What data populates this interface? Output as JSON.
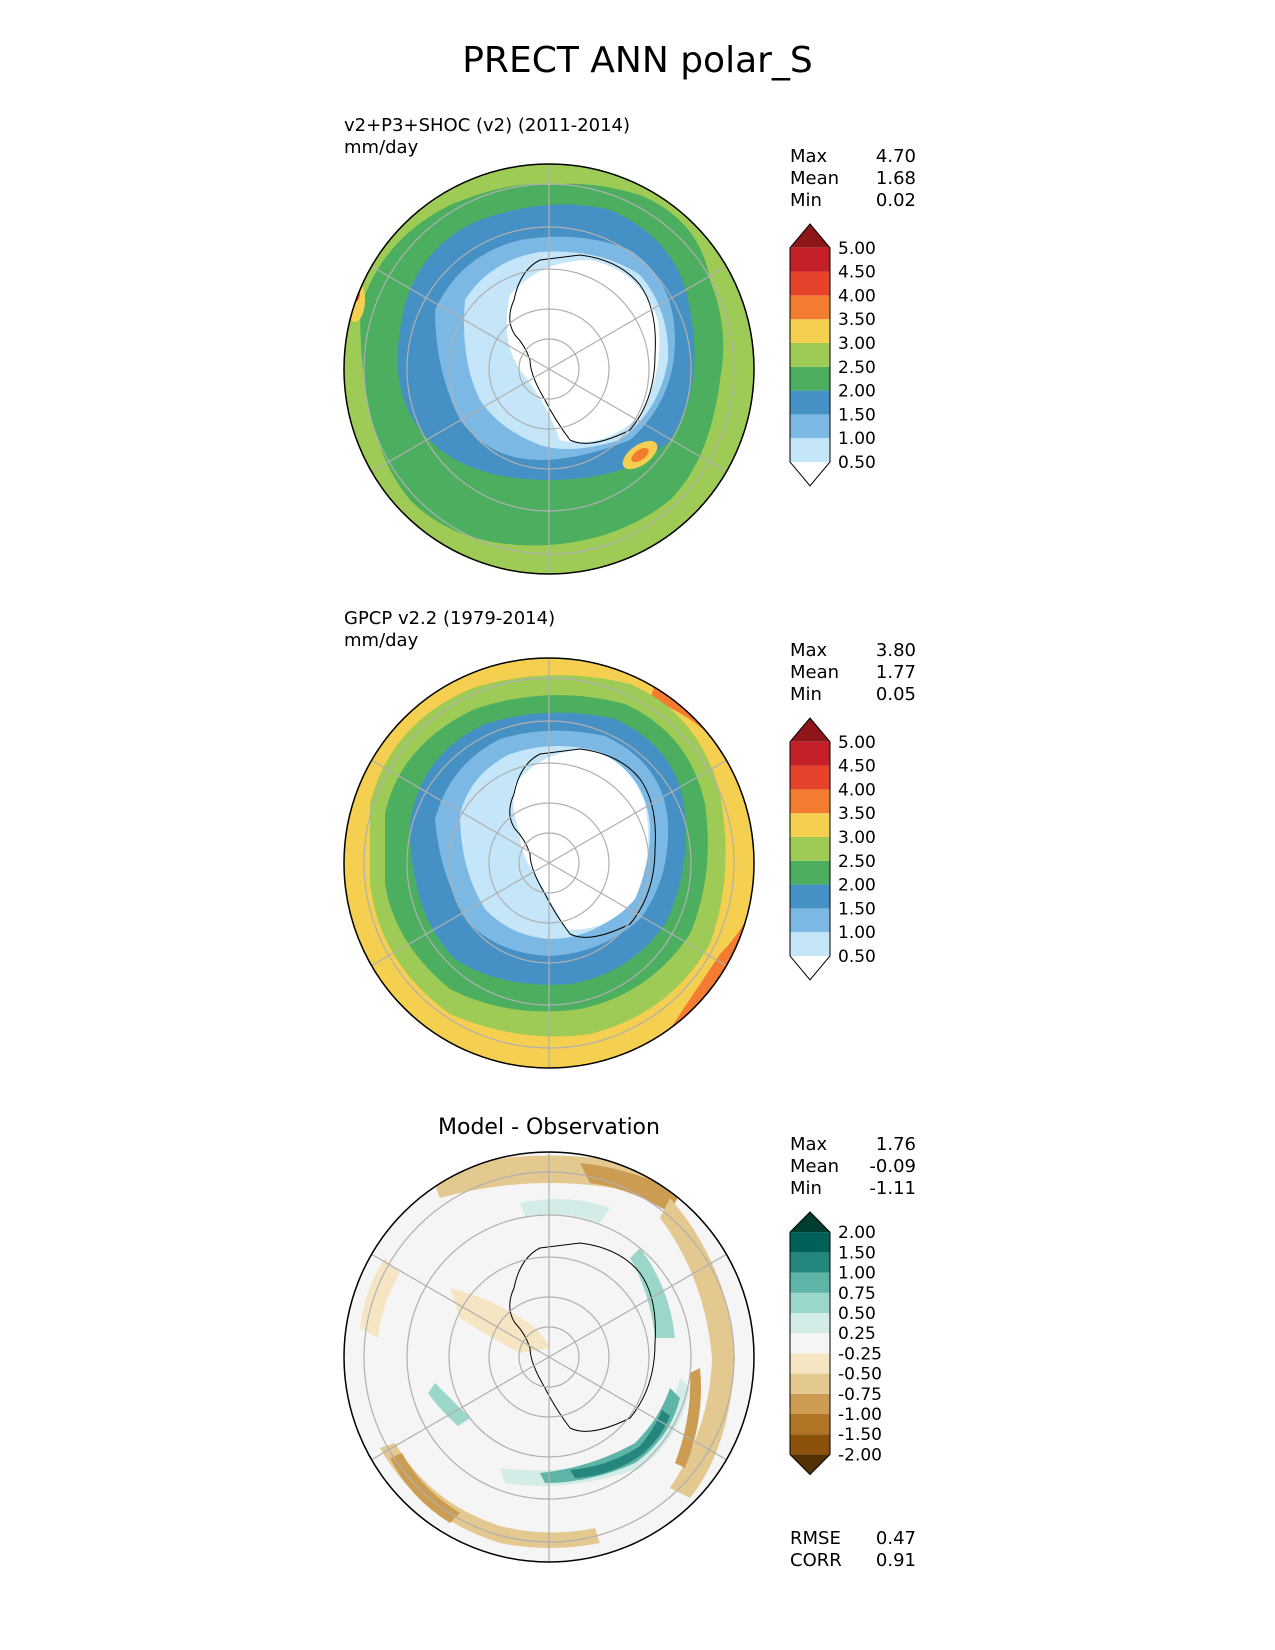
{
  "title": "PRECT ANN polar_S",
  "panels": [
    {
      "subtitle": "v2+P3+SHOC (v2) (2011-2014)",
      "units": "mm/day",
      "stats": [
        {
          "label": "Max",
          "value": "4.70"
        },
        {
          "label": "Mean",
          "value": "1.68"
        },
        {
          "label": "Min",
          "value": "0.02"
        }
      ]
    },
    {
      "subtitle": "GPCP v2.2 (1979-2014)",
      "units": "mm/day",
      "stats": [
        {
          "label": "Max",
          "value": "3.80"
        },
        {
          "label": "Mean",
          "value": "1.77"
        },
        {
          "label": "Min",
          "value": "0.05"
        }
      ]
    },
    {
      "title": "Model - Observation",
      "stats": [
        {
          "label": "Max",
          "value": "1.76"
        },
        {
          "label": "Mean",
          "value": "-0.09"
        },
        {
          "label": "Min",
          "value": "-1.11"
        }
      ],
      "footer_stats": [
        {
          "label": "RMSE",
          "value": "0.47"
        },
        {
          "label": "CORR",
          "value": "0.91"
        }
      ]
    }
  ],
  "colorbars": {
    "precip": {
      "ticks": [
        "0.50",
        "1.00",
        "1.50",
        "2.00",
        "2.50",
        "3.00",
        "3.50",
        "4.00",
        "4.50",
        "5.00"
      ],
      "colors": [
        "#ffffff",
        "#c4e6f8",
        "#7bb8e3",
        "#4590c4",
        "#4caf5f",
        "#9ecb55",
        "#f5cf50",
        "#f47c30",
        "#e5432b",
        "#c3202a",
        "#8e1518"
      ]
    },
    "diff": {
      "ticks": [
        "-2.00",
        "-1.50",
        "-1.00",
        "-0.75",
        "-0.50",
        "-0.25",
        "0.25",
        "0.50",
        "0.75",
        "1.00",
        "1.50",
        "2.00"
      ],
      "colors": [
        "#543005",
        "#8c510a",
        "#b27526",
        "#cb9c51",
        "#e3c88f",
        "#f5e5c3",
        "#f5f5f5",
        "#d3ece8",
        "#9bd6cb",
        "#5db4a7",
        "#25867d",
        "#016158",
        "#003c30"
      ]
    }
  },
  "chart_data": [
    {
      "type": "heatmap",
      "title": "v2+P3+SHOC (v2) (2011-2014)",
      "units": "mm/day",
      "projection": "south polar stereographic",
      "colorbar_levels": [
        0.5,
        1.0,
        1.5,
        2.0,
        2.5,
        3.0,
        3.5,
        4.0,
        4.5,
        5.0
      ],
      "max": 4.7,
      "mean": 1.68,
      "min": 0.02
    },
    {
      "type": "heatmap",
      "title": "GPCP v2.2 (1979-2014)",
      "units": "mm/day",
      "projection": "south polar stereographic",
      "colorbar_levels": [
        0.5,
        1.0,
        1.5,
        2.0,
        2.5,
        3.0,
        3.5,
        4.0,
        4.5,
        5.0
      ],
      "max": 3.8,
      "mean": 1.77,
      "min": 0.05
    },
    {
      "type": "heatmap",
      "title": "Model - Observation",
      "projection": "south polar stereographic",
      "colorbar_levels": [
        -2.0,
        -1.5,
        -1.0,
        -0.75,
        -0.5,
        -0.25,
        0.25,
        0.5,
        0.75,
        1.0,
        1.5,
        2.0
      ],
      "max": 1.76,
      "mean": -0.09,
      "min": -1.11,
      "rmse": 0.47,
      "corr": 0.91
    }
  ]
}
